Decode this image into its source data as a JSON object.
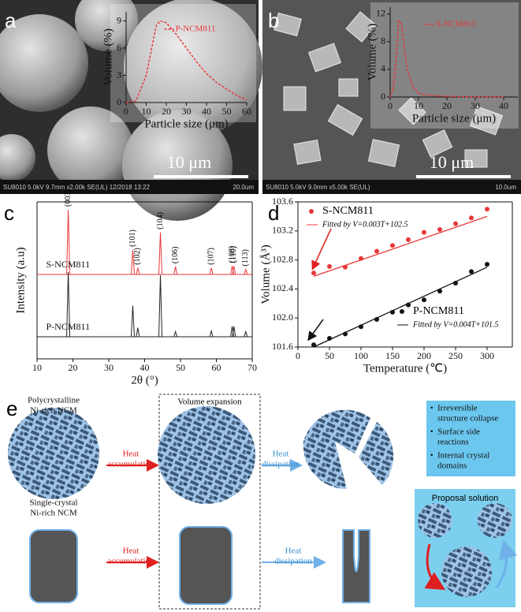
{
  "panel_labels": [
    "a",
    "b",
    "c",
    "d",
    "e"
  ],
  "sem": [
    {
      "scale_bar": "10 μm",
      "info": "SU8010 5.0kV 9.7mm x2.00k SE(UL) 12/2018 13:22",
      "field": "20.0um"
    },
    {
      "scale_bar": "10 μm",
      "info": "SU8010 5.0kV 9.0mm x5.00k SE(UL)",
      "field": "10.0um"
    }
  ],
  "chart_data": [
    {
      "type": "line",
      "xlabel": "Particle size (μm)",
      "ylabel": "Volume (%)",
      "xlim": [
        0,
        60
      ],
      "ylim": [
        0,
        10
      ],
      "xticks": [
        0,
        10,
        20,
        30,
        40,
        50,
        60
      ],
      "yticks": [
        0,
        3,
        6,
        9
      ],
      "x": [
        0,
        5,
        10,
        15,
        17,
        20,
        25,
        30,
        35,
        40,
        45,
        50,
        55,
        60
      ],
      "series": [
        {
          "name": "P-NCM811",
          "color": "#e8373a",
          "values": [
            0,
            0.2,
            3,
            8.5,
            9,
            8.8,
            7.5,
            6,
            4.5,
            3.2,
            2.2,
            1.5,
            0.8,
            0.3
          ]
        }
      ]
    },
    {
      "type": "line",
      "xlabel": "Particle size (μm)",
      "ylabel": "Volume (%)",
      "xlim": [
        0,
        45
      ],
      "ylim": [
        0,
        13
      ],
      "xticks": [
        0,
        10,
        20,
        30,
        40
      ],
      "yticks": [
        0,
        4,
        8,
        12
      ],
      "x": [
        0,
        1,
        2,
        3,
        4,
        5,
        6,
        8,
        10,
        15,
        20,
        30,
        40
      ],
      "series": [
        {
          "name": "S-NCM811",
          "color": "#e8373a",
          "values": [
            0,
            1,
            5,
            11,
            10.5,
            7,
            4,
            1.5,
            0.5,
            0.2,
            0.1,
            0,
            0
          ]
        }
      ]
    },
    {
      "type": "xrd",
      "xlabel": "2θ (°)",
      "ylabel": "Intensity (a.u)",
      "xlim": [
        10,
        70
      ],
      "xticks": [
        10,
        20,
        30,
        40,
        50,
        60,
        70
      ],
      "ylim": [
        0,
        1
      ],
      "peak_positions": [
        18.7,
        36.7,
        38.1,
        44.4,
        48.6,
        58.6,
        64.4,
        64.9,
        68.2
      ],
      "peak_labels": [
        "(003)",
        "(101)",
        "(102)",
        "(104)",
        "(106)",
        "(107)",
        "(108)",
        "(110)",
        "(113)"
      ],
      "series": [
        {
          "name": "S-NCM811",
          "color": "#e8373a",
          "values": [
            1.0,
            0.38,
            0.1,
            0.65,
            0.12,
            0.1,
            0.13,
            0.13,
            0.08
          ]
        },
        {
          "name": "P-NCM811",
          "color": "#222222",
          "values": [
            1.0,
            0.48,
            0.14,
            0.95,
            0.08,
            0.09,
            0.16,
            0.16,
            0.08
          ]
        }
      ]
    },
    {
      "type": "scatter",
      "xlabel": "Temperature (℃)",
      "ylabel": "Volume (Å³)",
      "xlim": [
        0,
        340
      ],
      "ylim": [
        101.6,
        103.6
      ],
      "xticks": [
        0,
        50,
        100,
        150,
        200,
        250,
        300
      ],
      "yticks": [
        101.6,
        {
          "value": 102.0,
          "label": "102.0"
        },
        102.4,
        102.8,
        103.2,
        103.6
      ],
      "x": [
        25,
        50,
        75,
        100,
        125,
        150,
        175,
        200,
        225,
        250,
        275,
        300
      ],
      "series": [
        {
          "name": "S-NCM811",
          "color": "#e8373a",
          "values": [
            102.62,
            102.71,
            102.7,
            102.82,
            102.92,
            103.0,
            103.08,
            103.18,
            103.22,
            103.3,
            103.38,
            103.5
          ],
          "fit_label": "Fitted by V=0.003T+102.5",
          "fit": [
            0.003,
            102.5
          ]
        },
        {
          "name": "P-NCM811",
          "color": "#111111",
          "values": [
            101.63,
            101.72,
            101.78,
            101.88,
            101.98,
            102.08,
            102.18,
            102.25,
            102.37,
            102.48,
            102.64,
            102.74
          ],
          "fit_label": "Fitted by V=0.004T+101.5",
          "fit": [
            0.004,
            101.5
          ]
        }
      ]
    }
  ],
  "schematic": {
    "poly_label": [
      "Polycrystalline",
      "Ni-rich NCM"
    ],
    "single_label": [
      "Single-crystal",
      "Ni-rich NCM"
    ],
    "heat_accumulation": [
      [
        "Heat",
        "accumulation"
      ],
      [
        "Heat",
        "accumulation"
      ]
    ],
    "volume_expansion": "Volume expansion",
    "heat_dissipation": [
      [
        "Heat",
        "dissipation"
      ],
      [
        "Heat",
        "dissipation"
      ]
    ],
    "issues": [
      [
        "Irreversible",
        "structure collapse"
      ],
      [
        "Surface side",
        "reactions"
      ],
      [
        "Internal crystal",
        "domains"
      ]
    ],
    "proposal": "Proposal solution"
  }
}
